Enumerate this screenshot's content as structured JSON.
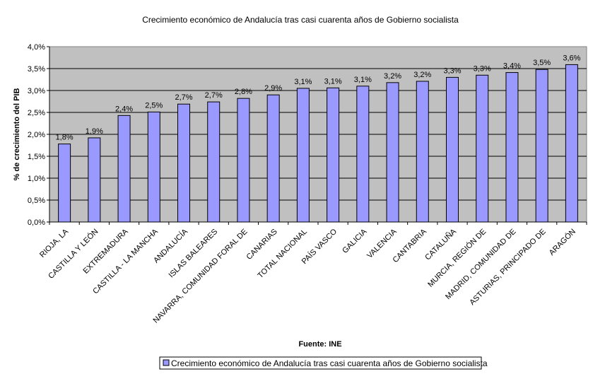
{
  "chart_data": {
    "type": "bar",
    "title": "Crecimiento económico de Andalucía tras casi cuarenta años de Gobierno socialista",
    "xlabel": "Fuente: INE",
    "ylabel": "% de crecimiento del PIB",
    "ylim": [
      0,
      4.0
    ],
    "yticks": [
      0,
      0.5,
      1.0,
      1.5,
      2.0,
      2.5,
      3.0,
      3.5,
      4.0
    ],
    "ytick_labels": [
      "0,0%",
      "0,5%",
      "1,0%",
      "1,5%",
      "2,0%",
      "2,5%",
      "3,0%",
      "3,5%",
      "4,0%"
    ],
    "grid": true,
    "legend_position": "bottom",
    "categories": [
      "RIOJA, LA",
      "CASTILLA Y LEÓN",
      "EXTREMADURA",
      "CASTILLA - LA MANCHA",
      "ANDALUCÍA",
      "ISLAS BALEARES",
      "NAVARRA, COMUNIDAD FORAL DE",
      "CANARIAS",
      "TOTAL NACIONAL",
      "PAÍS VASCO",
      "GALICIA",
      "VALENCIA",
      "CANTABRIA",
      "CATALUÑA",
      "MURCIA, REGIÓN DE",
      "MADRID, COMUNIDAD DE",
      "ASTURIAS, PRINCIPADO DE",
      "ARAGÓN"
    ],
    "series": [
      {
        "name": "Crecimiento económico de Andalucía tras casi cuarenta años de Gobierno socialista",
        "values": [
          1.78,
          1.92,
          2.43,
          2.51,
          2.69,
          2.74,
          2.82,
          2.9,
          3.05,
          3.06,
          3.1,
          3.18,
          3.21,
          3.3,
          3.35,
          3.41,
          3.48,
          3.59
        ],
        "data_labels": [
          "1,8%",
          "1,9%",
          "2,4%",
          "2,5%",
          "2,7%",
          "2,7%",
          "2,8%",
          "2,9%",
          "3,1%",
          "3,1%",
          "3,1%",
          "3,2%",
          "3,2%",
          "3,3%",
          "3,3%",
          "3,4%",
          "3,5%",
          "3,6%"
        ],
        "color": "#9999ff"
      }
    ],
    "colors": {
      "plot_background": "#c0c0c0",
      "bar_fill": "#9999ff",
      "bar_stroke": "#000000",
      "gridline": "#000000"
    }
  }
}
